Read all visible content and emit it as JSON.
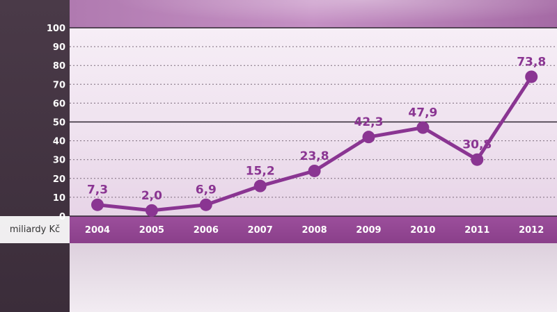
{
  "unit_label": "miliardy Kč",
  "colors": {
    "line": "#8a3592",
    "axis_band": "#913f91"
  },
  "chart_data": {
    "type": "line",
    "categories": [
      "2004",
      "2005",
      "2006",
      "2007",
      "2008",
      "2009",
      "2010",
      "2011",
      "2012"
    ],
    "values": [
      7.3,
      2.0,
      6.9,
      15.2,
      23.8,
      42.3,
      47.9,
      30.8,
      73.8
    ],
    "data_labels": [
      "7,3",
      "2,0",
      "6,9",
      "15,2",
      "23,8",
      "42,3",
      "47,9",
      "30,8",
      "73,8"
    ],
    "point_y": [
      6,
      3,
      6,
      16,
      24,
      42,
      47,
      30,
      74
    ],
    "ylim": [
      0,
      100
    ],
    "yticks": [
      0,
      10,
      20,
      30,
      40,
      50,
      60,
      70,
      80,
      90,
      100
    ],
    "ylabel": "miliardy Kč",
    "grid": true
  }
}
